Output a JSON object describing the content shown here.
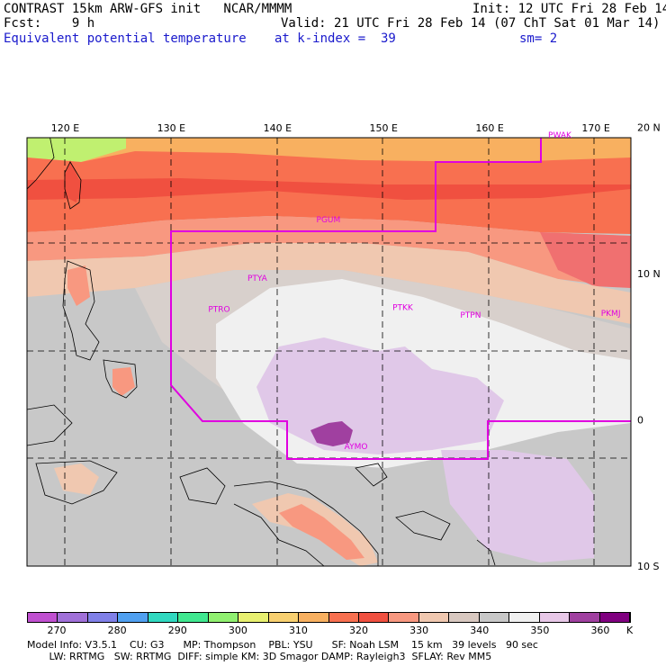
{
  "header": {
    "line1_left": "CONTRAST 15km ARW-GFS init   NCAR/MMMM",
    "line1_right": "Init: 12 UTC Fri 28 Feb 14",
    "line2_left": "Fcst:    9 h",
    "line2_right": "Valid: 21 UTC Fri 28 Feb 14 (07 ChT Sat 01 Mar 14)",
    "line3_left": "Equivalent potential temperature",
    "line3_mid": "at k-index =  39",
    "line3_right": "sm= 2"
  },
  "map": {
    "lon_labels": [
      "120 E",
      "130 E",
      "140 E",
      "150 E",
      "160 E",
      "170 E"
    ],
    "lon_values": [
      120,
      130,
      140,
      150,
      160,
      170
    ],
    "lat_labels": [
      "20 N",
      "10 N",
      "0",
      "10 S"
    ],
    "lat_values": [
      20,
      10,
      0,
      -10
    ],
    "lon_range": [
      116.4,
      173.3
    ],
    "lat_range": [
      -10,
      19.3
    ],
    "stations": [
      {
        "name": "PGUM",
        "lon": 144.8,
        "lat": 13.5
      },
      {
        "name": "PWAK",
        "lon": 166.6,
        "lat": 19.3
      },
      {
        "name": "PTYA",
        "lon": 138.1,
        "lat": 9.5
      },
      {
        "name": "PTRO",
        "lon": 134.5,
        "lat": 7.4
      },
      {
        "name": "PTKK",
        "lon": 151.8,
        "lat": 7.5
      },
      {
        "name": "PTPN",
        "lon": 158.2,
        "lat": 7.0
      },
      {
        "name": "PKMJ",
        "lon": 171.4,
        "lat": 7.1
      },
      {
        "name": "AYMO",
        "lon": 147.4,
        "lat": -2.0
      }
    ],
    "colors": {
      "boundary": "#e000e0",
      "grid": "#000000"
    }
  },
  "colorbar": {
    "labels": [
      "270",
      "280",
      "290",
      "300",
      "310",
      "320",
      "330",
      "340",
      "350",
      "360"
    ],
    "unit": "K",
    "colors": [
      "#c050d0",
      "#a070d8",
      "#8080e8",
      "#50a0f0",
      "#30d8c0",
      "#40e890",
      "#90f070",
      "#e8f070",
      "#f8d070",
      "#f8b060",
      "#f87050",
      "#f05040",
      "#f89880",
      "#f0c8b0",
      "#d8c8c0",
      "#c8c8c8",
      "#f0f0f0",
      "#e8c8e8",
      "#a040a0",
      "#800080"
    ]
  },
  "footer": {
    "line1": "Model Info: V3.5.1    CU: G3      MP: Thompson    PBL: YSU      SF: Noah LSM    15 km   39 levels   90 sec",
    "line2": "       LW: RRTMG   SW: RRTMG  DIFF: simple KM: 3D Smagor DAMP: Rayleigh3  SFLAY: Rev MM5"
  }
}
